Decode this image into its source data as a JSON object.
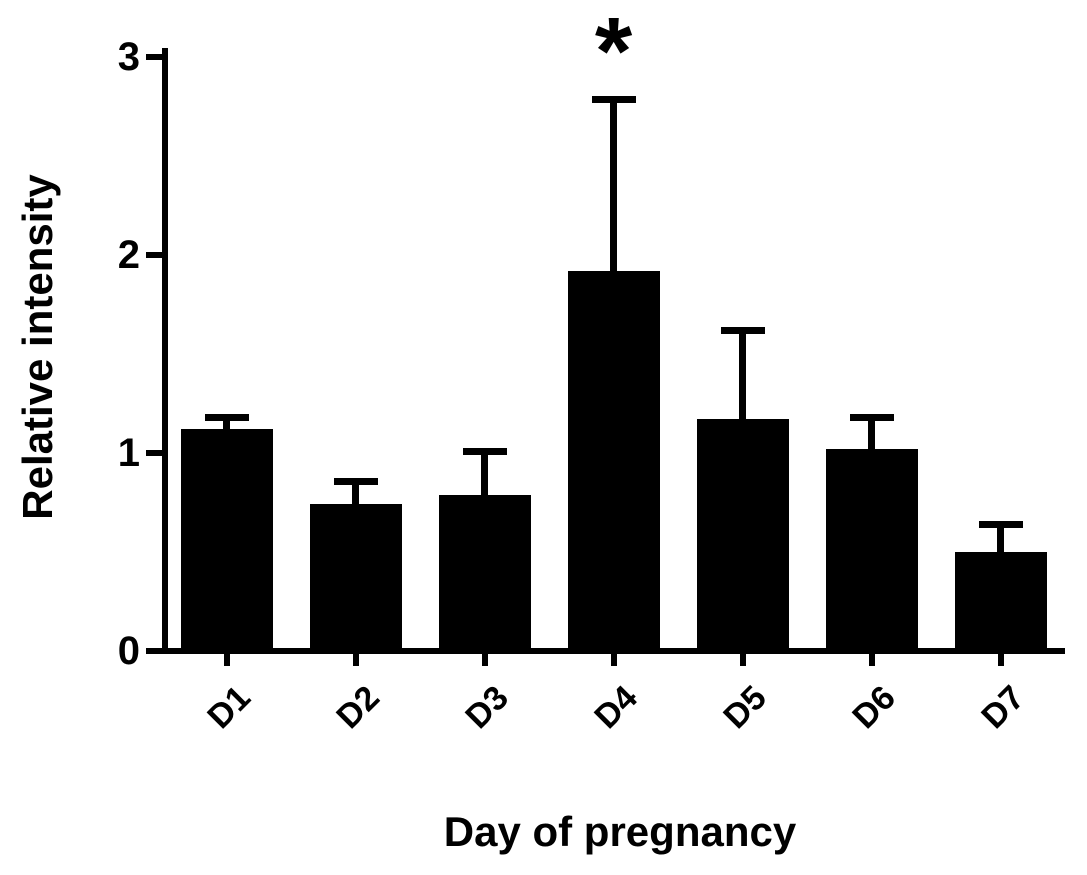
{
  "chart_data": {
    "type": "bar",
    "title": "",
    "xlabel": "Day of pregnancy",
    "ylabel": "Relative intensity",
    "categories": [
      "D1",
      "D2",
      "D3",
      "D4",
      "D5",
      "D6",
      "D7"
    ],
    "values": [
      1.12,
      0.74,
      0.79,
      1.92,
      1.17,
      1.02,
      0.5
    ],
    "error_upper": [
      0.06,
      0.12,
      0.22,
      0.87,
      0.45,
      0.16,
      0.14
    ],
    "ylim": [
      0,
      3
    ],
    "yticks": [
      0,
      1,
      2,
      3
    ],
    "grid": false,
    "legend": null,
    "bar_color": "#000000",
    "background_color": "#ffffff",
    "annotations": [
      {
        "category": "D4",
        "symbol": "*"
      }
    ]
  }
}
